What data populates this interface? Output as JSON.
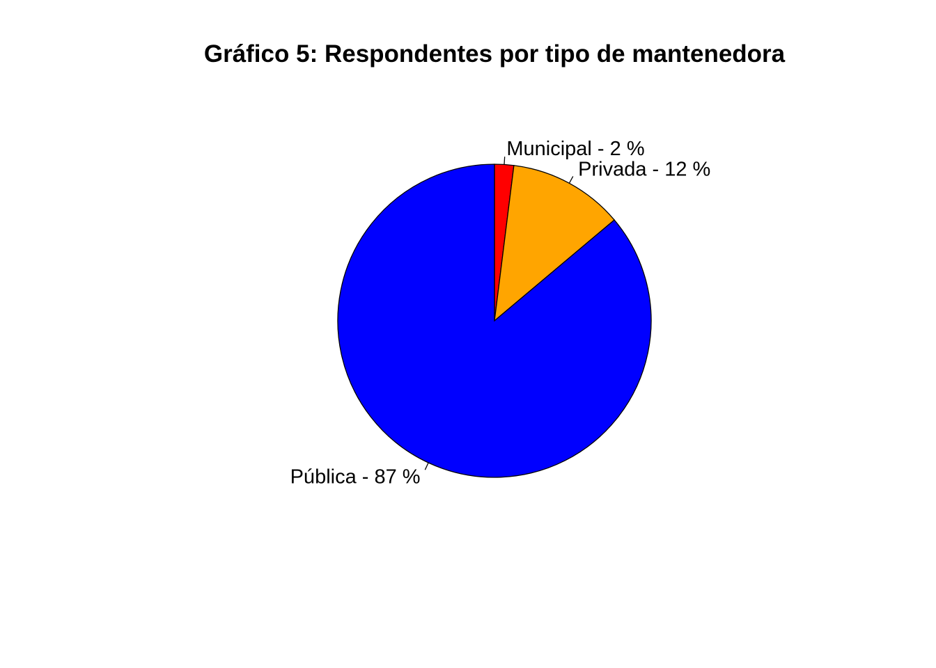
{
  "chart_data": {
    "type": "pie",
    "title": "Gráfico 5: Respondentes por tipo de mantenedora",
    "start_angle_deg": 90,
    "direction": "clockwise",
    "slices": [
      {
        "name": "Municipal",
        "value": 2,
        "label": "Municipal - 2 %",
        "color": "#FF0000"
      },
      {
        "name": "Privada",
        "value": 12,
        "label": "Privada - 12 %",
        "color": "#FFA500"
      },
      {
        "name": "Pública",
        "value": 87,
        "label": "Pública - 87 %",
        "color": "#0000FF"
      }
    ]
  }
}
